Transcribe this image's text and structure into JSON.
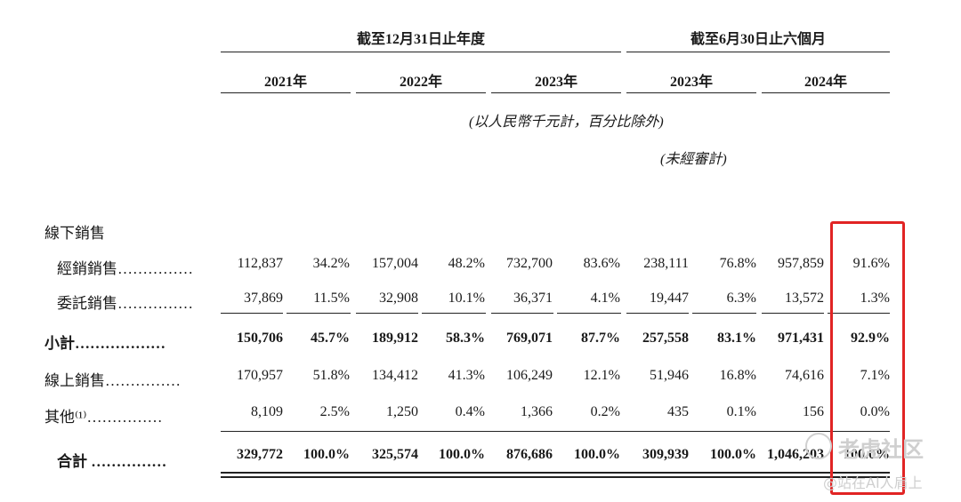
{
  "header": {
    "group_year": "截至12月31日止年度",
    "group_half": "截至6月30日止六個月",
    "years": [
      "2021年",
      "2022年",
      "2023年",
      "2023年",
      "2024年"
    ],
    "unit_note": "(以人民幣千元計，百分比除外)",
    "unaudited_note": "(未經審計)"
  },
  "section_label": "線下銷售",
  "rows": [
    {
      "label": "經銷銷售……………",
      "bold": false,
      "indent": true,
      "values": [
        "112,837",
        "34.2%",
        "157,004",
        "48.2%",
        "732,700",
        "83.6%",
        "238,111",
        "76.8%",
        "957,859",
        "91.6%"
      ]
    },
    {
      "label": "委託銷售……………",
      "bold": false,
      "indent": true,
      "values": [
        "37,869",
        "11.5%",
        "32,908",
        "10.1%",
        "36,371",
        "4.1%",
        "19,447",
        "6.3%",
        "13,572",
        "1.3%"
      ]
    },
    {
      "label": "小計………………",
      "bold": true,
      "indent": false,
      "values": [
        "150,706",
        "45.7%",
        "189,912",
        "58.3%",
        "769,071",
        "87.7%",
        "257,558",
        "83.1%",
        "971,431",
        "92.9%"
      ]
    },
    {
      "label": "線上銷售……………",
      "bold": false,
      "indent": false,
      "values": [
        "170,957",
        "51.8%",
        "134,412",
        "41.3%",
        "106,249",
        "12.1%",
        "51,946",
        "16.8%",
        "74,616",
        "7.1%"
      ]
    },
    {
      "label": "其他⁽¹⁾……………",
      "bold": false,
      "indent": false,
      "values": [
        "8,109",
        "2.5%",
        "1,250",
        "0.4%",
        "1,366",
        "0.2%",
        "435",
        "0.1%",
        "156",
        "0.0%"
      ]
    },
    {
      "label": "合計 ……………",
      "bold": true,
      "indent": true,
      "values": [
        "329,772",
        "100.0%",
        "325,574",
        "100.0%",
        "876,686",
        "100.0%",
        "309,939",
        "100.0%",
        "1,046,203",
        "100.0%"
      ]
    }
  ],
  "watermark": {
    "logo_text": "老虎社区",
    "handle": "@站在AI人肩上"
  },
  "colors": {
    "highlight_box": "#e12424"
  }
}
